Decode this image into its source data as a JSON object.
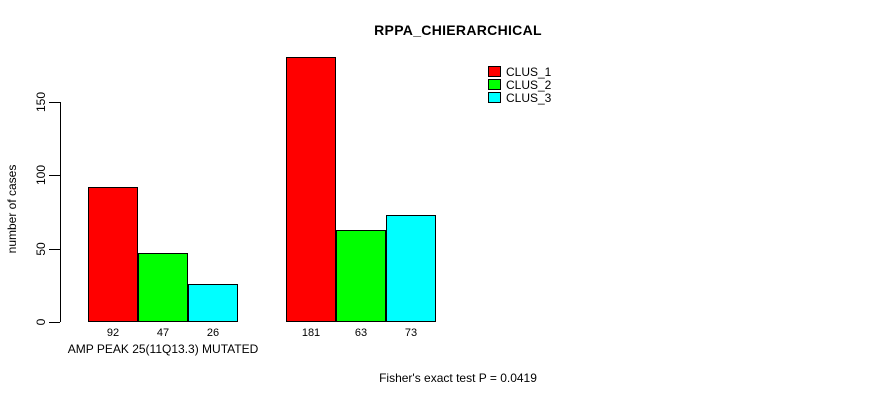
{
  "chart_data": {
    "type": "bar",
    "title": "RPPA_CHIERARCHICAL",
    "ylabel": "number of cases",
    "xlabel": "AMP PEAK 25(11Q13.3) MUTATED",
    "annotation": "Fisher's exact test P = 0.0419",
    "ylim": [
      0,
      150
    ],
    "yticks": [
      0,
      50,
      100,
      150
    ],
    "grid": false,
    "legend_position": "top-right",
    "group_labels": [
      "AMP PEAK 25(11Q13.3) MUTATED",
      ""
    ],
    "series": [
      {
        "name": "CLUS_1",
        "color": "#ff0000",
        "values": [
          92,
          181
        ]
      },
      {
        "name": "CLUS_2",
        "color": "#00ff00",
        "values": [
          47,
          63
        ]
      },
      {
        "name": "CLUS_3",
        "color": "#00ffff",
        "values": [
          26,
          73
        ]
      }
    ],
    "bar_value_labels": [
      [
        92,
        47,
        26
      ],
      [
        181,
        63,
        73
      ]
    ],
    "colors": {
      "axis": "#000000",
      "text": "#000000",
      "background": "#ffffff"
    }
  }
}
